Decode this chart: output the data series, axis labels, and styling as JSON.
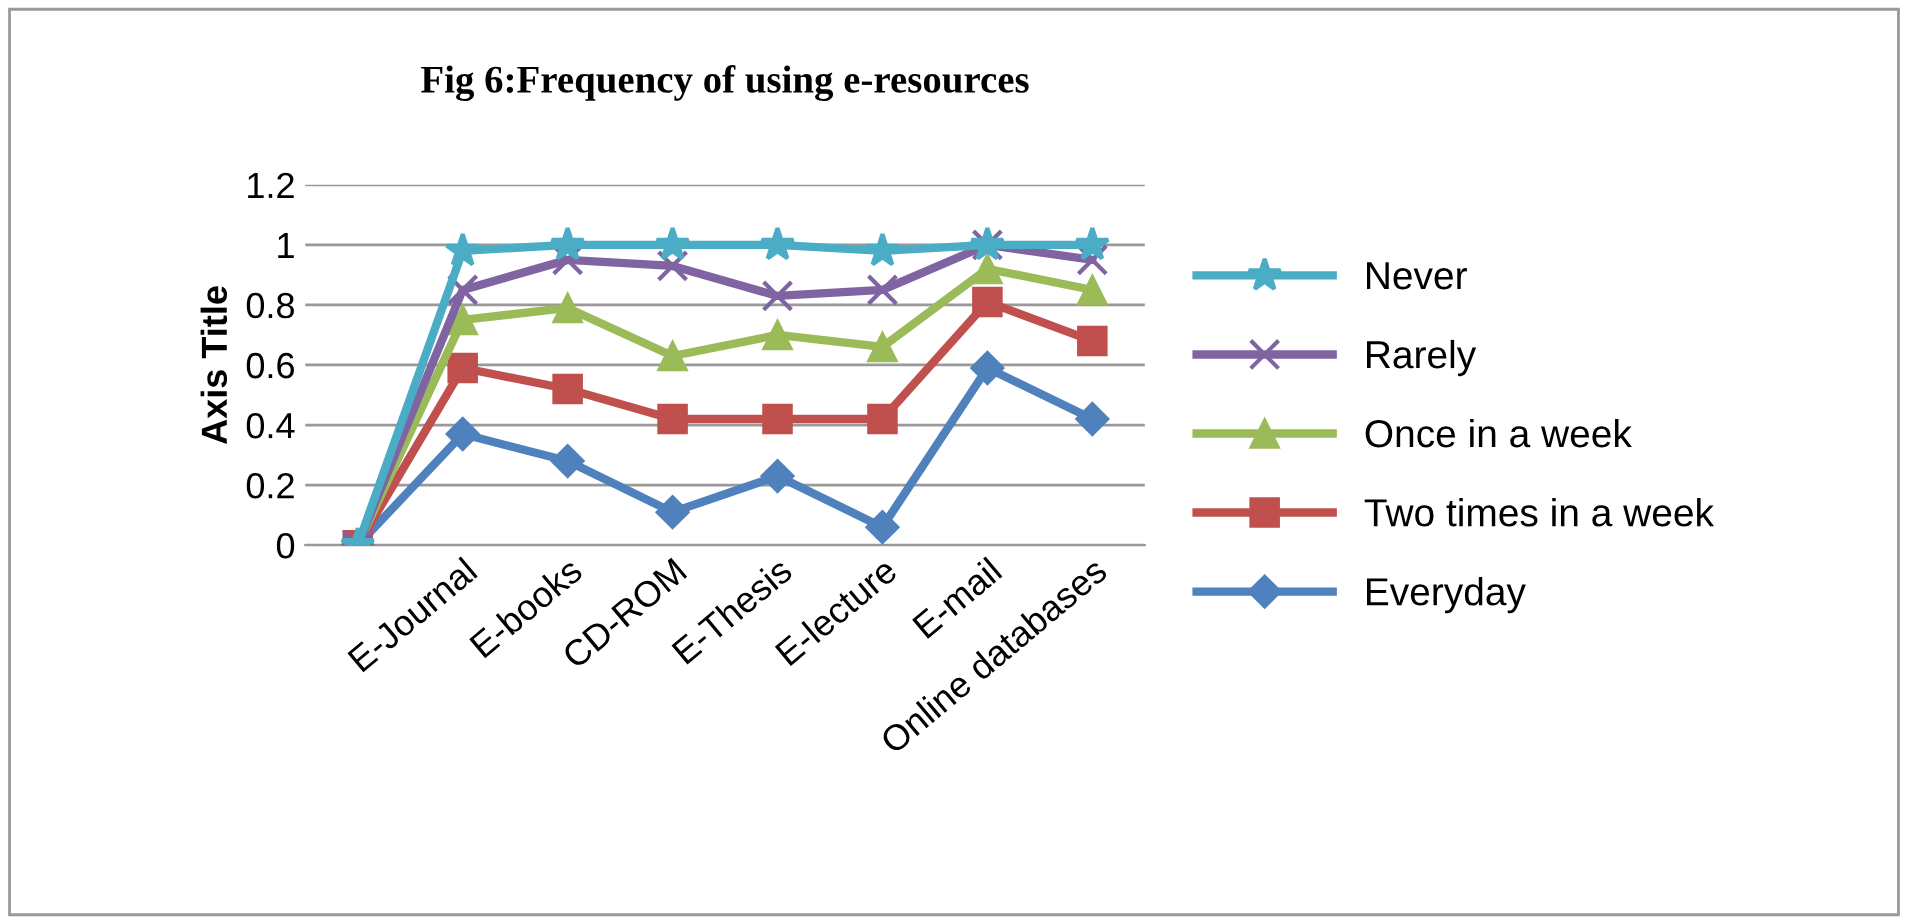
{
  "chart_data": {
    "type": "line",
    "title": "Fig 6:Frequency of using e-resources",
    "ylabel": "Axis Title",
    "categories": [
      null,
      "E-Journal",
      "E-books",
      "CD-ROM",
      "E-Thesis",
      "E-lecture",
      "E-mail",
      "Online databases"
    ],
    "series": [
      {
        "name": "Never",
        "color": "#4bacc6",
        "marker": "star",
        "values": [
          0,
          0.98,
          1,
          1,
          1,
          0.98,
          1,
          1
        ]
      },
      {
        "name": "Rarely",
        "color": "#8064a2",
        "marker": "cross",
        "values": [
          0,
          0.85,
          0.95,
          0.93,
          0.83,
          0.85,
          1,
          0.95
        ]
      },
      {
        "name": "Once in a week",
        "color": "#9bbb59",
        "marker": "triangle",
        "values": [
          0,
          0.75,
          0.79,
          0.63,
          0.7,
          0.66,
          0.92,
          0.85
        ]
      },
      {
        "name": "Two times in a week",
        "color": "#c0504d",
        "marker": "square",
        "values": [
          0,
          0.59,
          0.52,
          0.42,
          0.42,
          0.42,
          0.81,
          0.68
        ]
      },
      {
        "name": "Everyday",
        "color": "#4f81bd",
        "marker": "diamond",
        "values": [
          0,
          0.37,
          0.28,
          0.11,
          0.23,
          0.06,
          0.59,
          0.42
        ]
      }
    ],
    "ylim": [
      0,
      1.2
    ],
    "yticks": [
      0,
      0.2,
      0.4,
      0.6,
      0.8,
      1,
      1.2
    ],
    "grid": "y",
    "legend": "right",
    "line_style": "solid"
  }
}
